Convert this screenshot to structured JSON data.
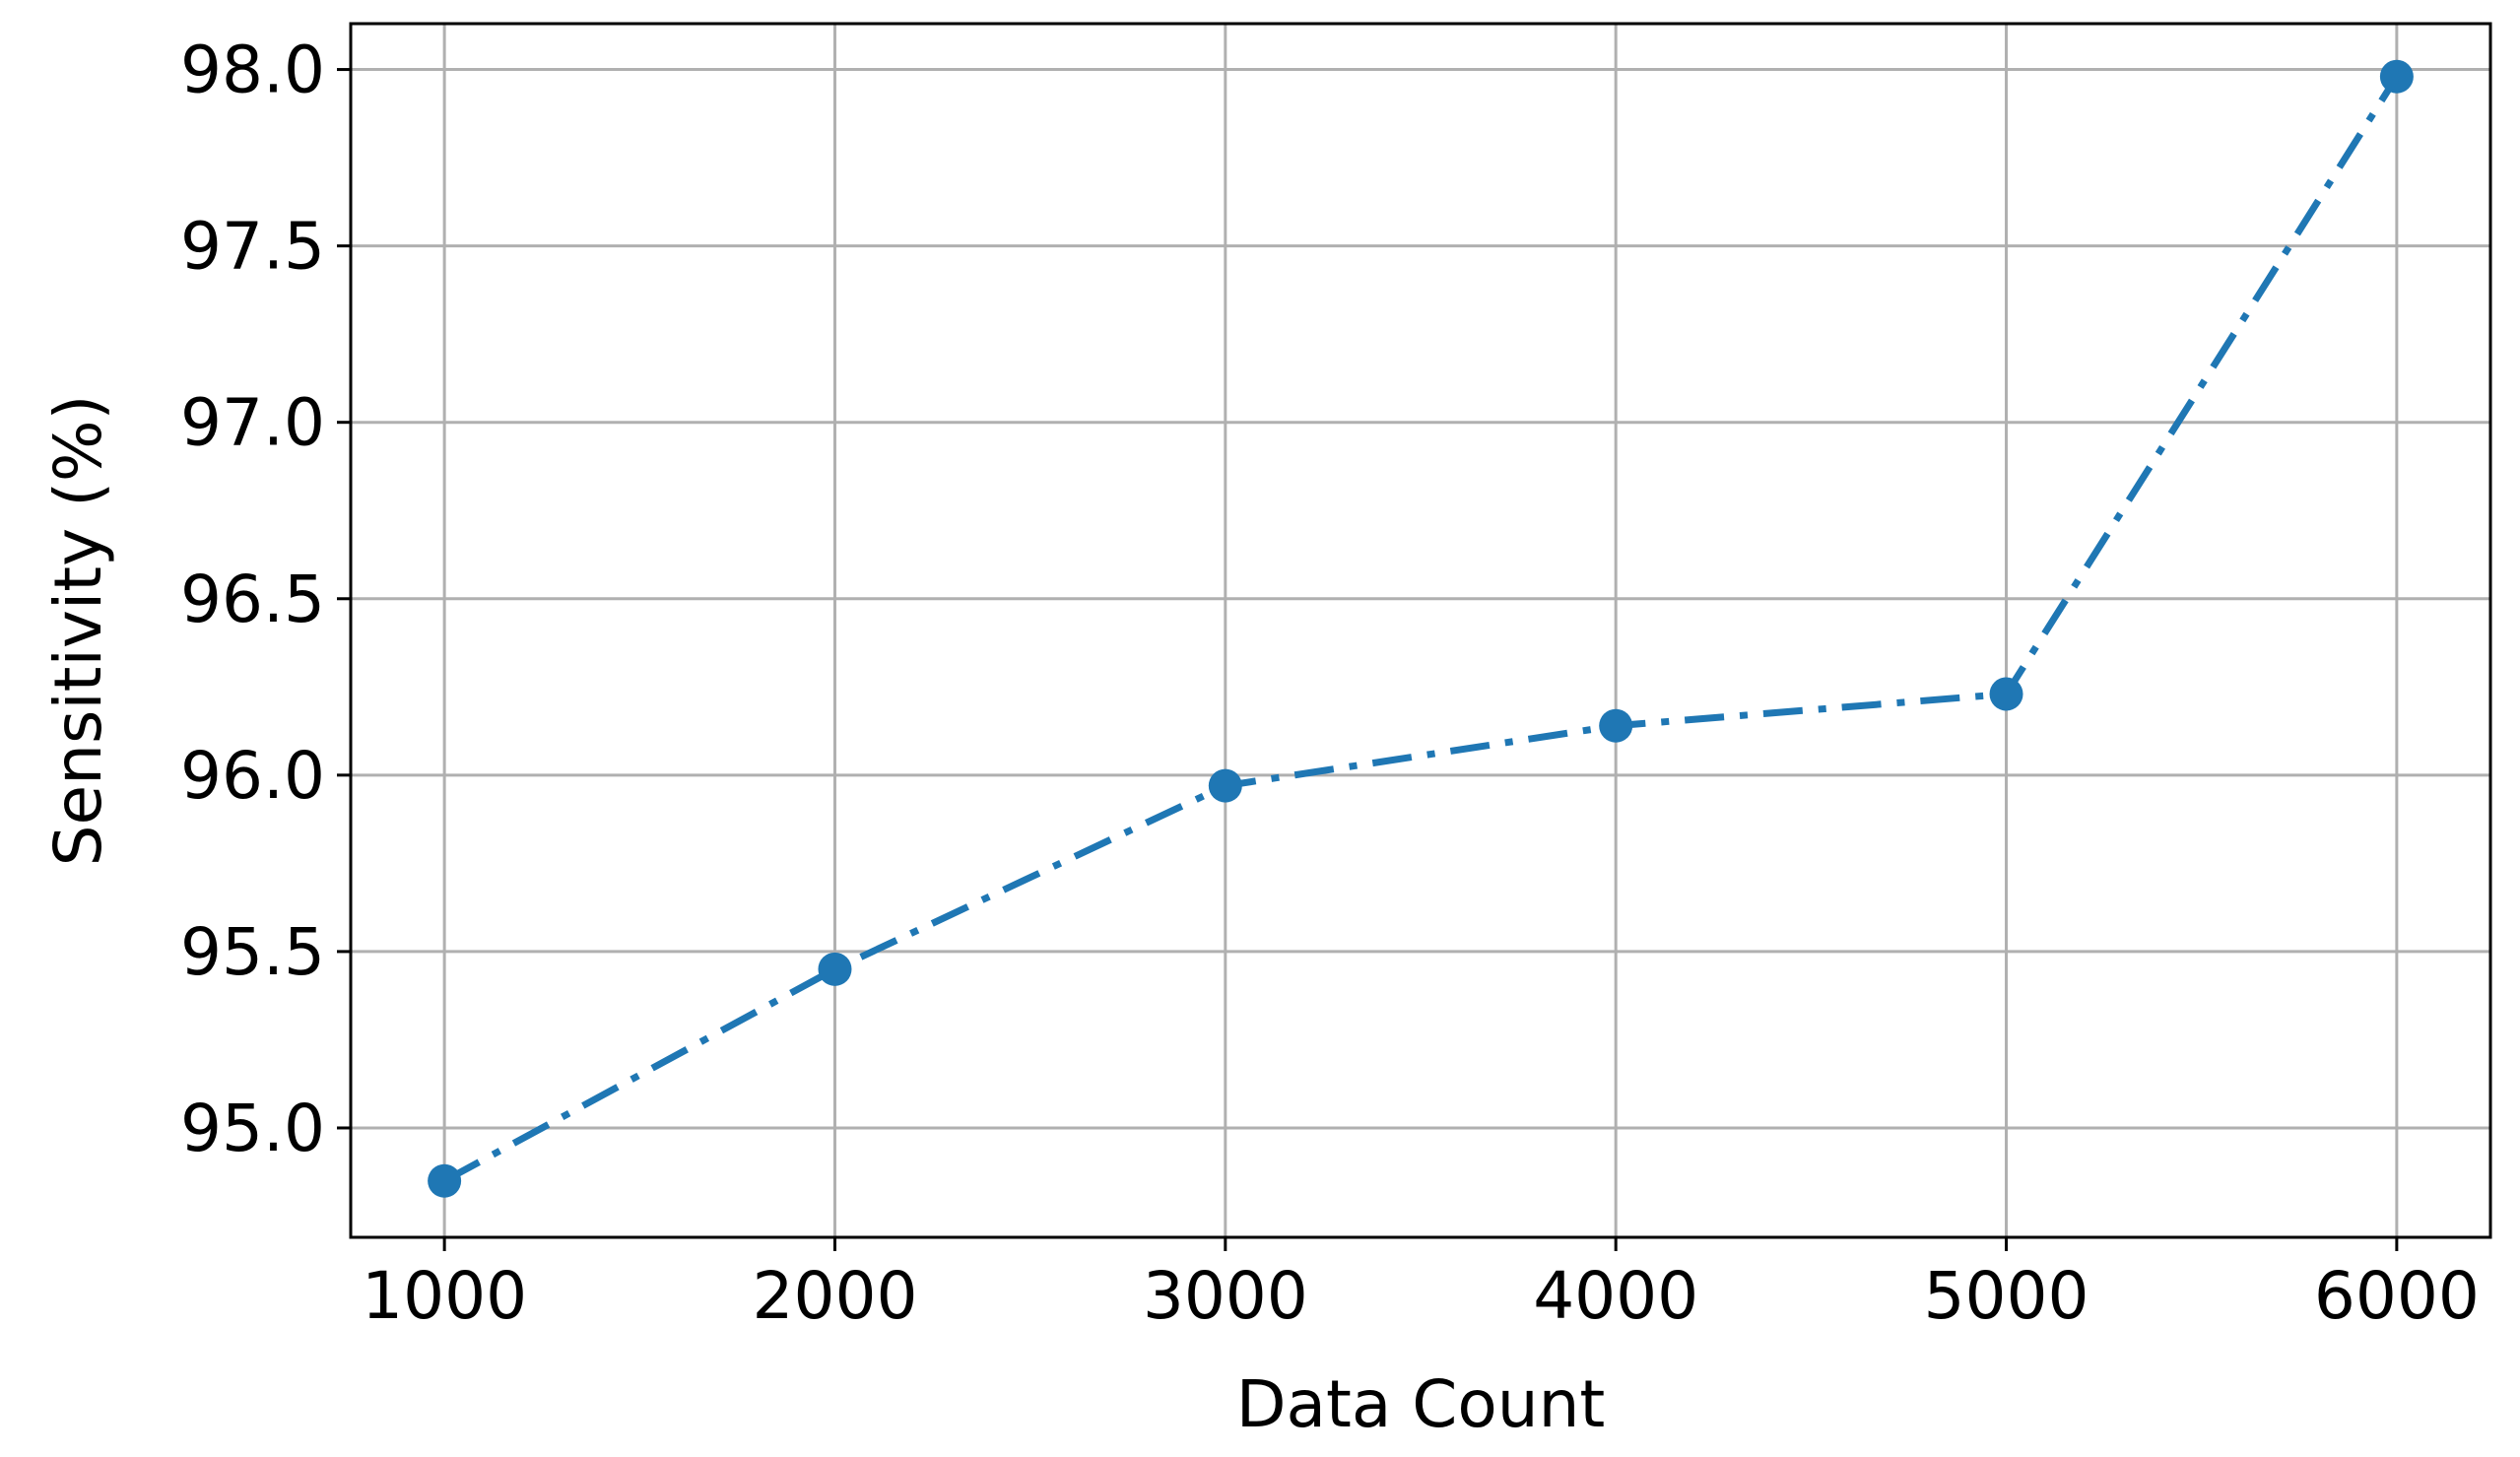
{
  "chart_data": {
    "type": "line",
    "title": "",
    "xlabel": "Data Count",
    "ylabel": "Sensitivity (%)",
    "x": [
      1000,
      2000,
      3000,
      4000,
      5000,
      6000
    ],
    "xticks": [
      "1000",
      "2000",
      "3000",
      "4000",
      "5000",
      "6000"
    ],
    "yticks": [
      "95.0",
      "95.5",
      "96.0",
      "96.5",
      "97.0",
      "97.5",
      "98.0"
    ],
    "ytick_values": [
      95.0,
      95.5,
      96.0,
      96.5,
      97.0,
      97.5,
      98.0
    ],
    "xlim": [
      760,
      6240
    ],
    "ylim": [
      94.69,
      98.13
    ],
    "grid": true,
    "series": [
      {
        "values": [
          94.85,
          95.45,
          95.97,
          96.14,
          96.23,
          97.98
        ],
        "color": "#1f77b4",
        "line_style": "dash-dot",
        "marker": "circle"
      }
    ]
  }
}
